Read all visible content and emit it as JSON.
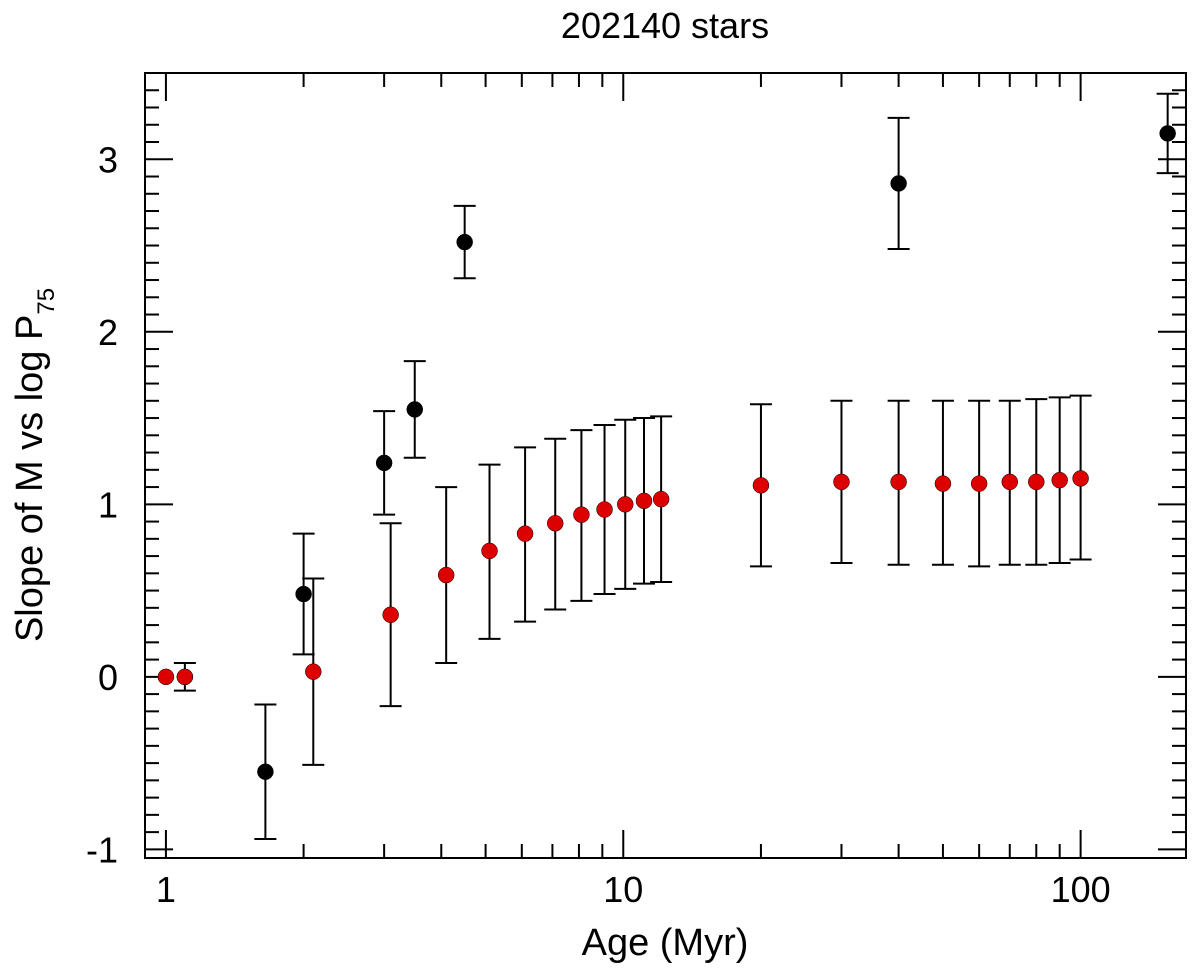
{
  "chart_data": {
    "type": "scatter",
    "title": "202140 stars",
    "xlabel": "Age (Myr)",
    "ylabel": {
      "main": "Slope of M vs log P",
      "subscript": "75"
    },
    "xscale": "log",
    "xlim": [
      0.9,
      170
    ],
    "ylim": [
      -1.05,
      3.5
    ],
    "x_ticks": [
      1,
      10,
      100
    ],
    "x_tick_labels": [
      "1",
      "10",
      "100"
    ],
    "y_ticks": [
      -1,
      0,
      1,
      2,
      3
    ],
    "y_tick_labels": [
      "-1",
      "0",
      "1",
      "2",
      "3"
    ],
    "grid": false,
    "series": [
      {
        "name": "black",
        "color": "#000000",
        "points": [
          {
            "x": 1.1,
            "y": 0.0,
            "lo": -0.08,
            "hi": 0.08
          },
          {
            "x": 1.65,
            "y": -0.55,
            "lo": -0.94,
            "hi": -0.16
          },
          {
            "x": 2.0,
            "y": 0.48,
            "lo": 0.13,
            "hi": 0.83
          },
          {
            "x": 3.0,
            "y": 1.24,
            "lo": 0.94,
            "hi": 1.54
          },
          {
            "x": 3.5,
            "y": 1.55,
            "lo": 1.27,
            "hi": 1.83
          },
          {
            "x": 4.5,
            "y": 2.52,
            "lo": 2.31,
            "hi": 2.73
          },
          {
            "x": 40.0,
            "y": 2.86,
            "lo": 2.48,
            "hi": 3.24
          },
          {
            "x": 155.0,
            "y": 3.15,
            "lo": 2.92,
            "hi": 3.38
          }
        ]
      },
      {
        "name": "red",
        "color": "#dd0000",
        "points": [
          {
            "x": 1.0,
            "y": 0.0,
            "lo": 0.0,
            "hi": 0.0
          },
          {
            "x": 1.1,
            "y": 0.0,
            "lo": 0.0,
            "hi": 0.0
          },
          {
            "x": 2.1,
            "y": 0.03,
            "lo": -0.51,
            "hi": 0.57
          },
          {
            "x": 3.1,
            "y": 0.36,
            "lo": -0.17,
            "hi": 0.89
          },
          {
            "x": 4.1,
            "y": 0.59,
            "lo": 0.08,
            "hi": 1.1
          },
          {
            "x": 5.1,
            "y": 0.73,
            "lo": 0.22,
            "hi": 1.23
          },
          {
            "x": 6.1,
            "y": 0.83,
            "lo": 0.32,
            "hi": 1.33
          },
          {
            "x": 7.1,
            "y": 0.89,
            "lo": 0.39,
            "hi": 1.38
          },
          {
            "x": 8.1,
            "y": 0.94,
            "lo": 0.44,
            "hi": 1.43
          },
          {
            "x": 9.1,
            "y": 0.97,
            "lo": 0.48,
            "hi": 1.46
          },
          {
            "x": 10.1,
            "y": 1.0,
            "lo": 0.51,
            "hi": 1.49
          },
          {
            "x": 11.1,
            "y": 1.02,
            "lo": 0.54,
            "hi": 1.5
          },
          {
            "x": 12.1,
            "y": 1.03,
            "lo": 0.55,
            "hi": 1.51
          },
          {
            "x": 20.0,
            "y": 1.11,
            "lo": 0.64,
            "hi": 1.58
          },
          {
            "x": 30.0,
            "y": 1.13,
            "lo": 0.66,
            "hi": 1.6
          },
          {
            "x": 40.0,
            "y": 1.13,
            "lo": 0.65,
            "hi": 1.6
          },
          {
            "x": 50.0,
            "y": 1.12,
            "lo": 0.65,
            "hi": 1.6
          },
          {
            "x": 60.0,
            "y": 1.12,
            "lo": 0.64,
            "hi": 1.6
          },
          {
            "x": 70.0,
            "y": 1.13,
            "lo": 0.65,
            "hi": 1.6
          },
          {
            "x": 80.0,
            "y": 1.13,
            "lo": 0.65,
            "hi": 1.61
          },
          {
            "x": 90.0,
            "y": 1.14,
            "lo": 0.66,
            "hi": 1.62
          },
          {
            "x": 100.0,
            "y": 1.15,
            "lo": 0.68,
            "hi": 1.63
          }
        ]
      }
    ]
  }
}
